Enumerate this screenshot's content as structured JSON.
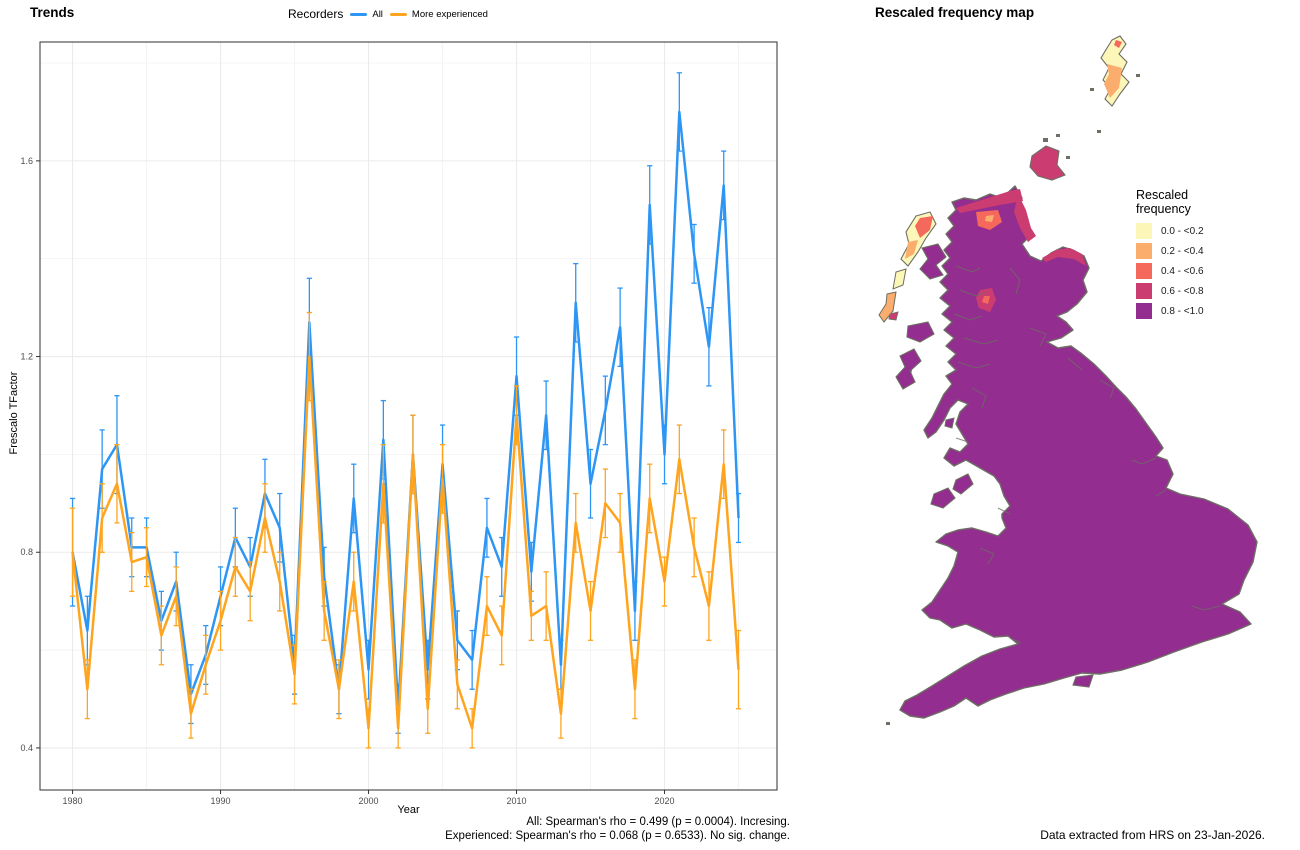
{
  "trends": {
    "title": "Trends",
    "legend_title": "Recorders",
    "xlabel": "Year",
    "ylabel": "Frescalo TFactor",
    "caption_line1": "All: Spearman's rho = 0.499 (p = 0.0004). Incresing.",
    "caption_line2": "Experienced: Spearman's rho = 0.068 (p = 0.6533). No sig. change."
  },
  "chart_data": {
    "type": "line",
    "title": "Trends",
    "xlabel": "Year",
    "ylabel": "Frescalo TFactor",
    "grid": true,
    "legend_position": "top",
    "xlim": [
      1977.8,
      2027.6
    ],
    "ylim": [
      0.314,
      1.843
    ],
    "x_ticks": [
      1980,
      1990,
      2000,
      2010,
      2020
    ],
    "x_minor": [
      1985,
      1995,
      2005,
      2015,
      2025
    ],
    "y_ticks": [
      "0.4",
      "0.8",
      "1.2",
      "1.6"
    ],
    "y_minor": [
      0.6,
      1.0,
      1.4,
      1.8
    ],
    "years": [
      1980,
      1981,
      1982,
      1983,
      1984,
      1985,
      1986,
      1987,
      1988,
      1989,
      1990,
      1991,
      1992,
      1993,
      1994,
      1995,
      1996,
      1997,
      1998,
      1999,
      2000,
      2001,
      2002,
      2003,
      2004,
      2005,
      2006,
      2007,
      2008,
      2009,
      2010,
      2011,
      2012,
      2013,
      2014,
      2015,
      2016,
      2017,
      2018,
      2019,
      2020,
      2021,
      2022,
      2023,
      2024,
      2025
    ],
    "series": [
      {
        "name": "All",
        "color": "#2D96F4",
        "values": [
          0.8,
          0.64,
          0.97,
          1.02,
          0.81,
          0.81,
          0.66,
          0.74,
          0.51,
          0.59,
          0.71,
          0.83,
          0.77,
          0.92,
          0.85,
          0.57,
          1.27,
          0.75,
          0.52,
          0.91,
          0.56,
          1.03,
          0.48,
          1.0,
          0.56,
          0.98,
          0.62,
          0.58,
          0.85,
          0.77,
          1.16,
          0.76,
          1.08,
          0.57,
          1.31,
          0.94,
          1.09,
          1.26,
          0.68,
          1.51,
          1.0,
          1.7,
          1.41,
          1.22,
          1.55,
          0.87
        ],
        "err": [
          0.11,
          0.07,
          0.08,
          0.1,
          0.06,
          0.06,
          0.06,
          0.06,
          0.06,
          0.06,
          0.06,
          0.06,
          0.06,
          0.07,
          0.07,
          0.06,
          0.09,
          0.06,
          0.05,
          0.07,
          0.06,
          0.08,
          0.05,
          0.08,
          0.06,
          0.08,
          0.06,
          0.06,
          0.06,
          0.06,
          0.08,
          0.06,
          0.07,
          0.05,
          0.08,
          0.07,
          0.07,
          0.08,
          0.06,
          0.08,
          0.06,
          0.08,
          0.06,
          0.08,
          0.07,
          0.05
        ]
      },
      {
        "name": "More experienced",
        "color": "#FFA41E",
        "values": [
          0.8,
          0.52,
          0.87,
          0.94,
          0.78,
          0.79,
          0.63,
          0.71,
          0.47,
          0.57,
          0.66,
          0.77,
          0.72,
          0.87,
          0.74,
          0.55,
          1.2,
          0.68,
          0.52,
          0.74,
          0.44,
          0.94,
          0.44,
          1.0,
          0.48,
          0.95,
          0.53,
          0.44,
          0.69,
          0.63,
          1.08,
          0.67,
          0.69,
          0.47,
          0.86,
          0.68,
          0.9,
          0.86,
          0.52,
          0.91,
          0.74,
          0.99,
          0.81,
          0.69,
          0.98,
          0.56
        ],
        "err": [
          0.09,
          0.06,
          0.07,
          0.08,
          0.06,
          0.06,
          0.06,
          0.06,
          0.05,
          0.06,
          0.06,
          0.06,
          0.06,
          0.07,
          0.06,
          0.06,
          0.09,
          0.06,
          0.06,
          0.06,
          0.04,
          0.08,
          0.04,
          0.08,
          0.05,
          0.07,
          0.05,
          0.04,
          0.06,
          0.06,
          0.06,
          0.05,
          0.07,
          0.05,
          0.06,
          0.06,
          0.07,
          0.06,
          0.06,
          0.07,
          0.05,
          0.07,
          0.06,
          0.07,
          0.07,
          0.08
        ]
      }
    ]
  },
  "map": {
    "title": "Rescaled frequency map",
    "legend_title": "Rescaled frequency",
    "legend_items": [
      {
        "label": "0.0 - <0.2",
        "color": "#FDF6B9"
      },
      {
        "label": "0.2 - <0.4",
        "color": "#FBAD6D"
      },
      {
        "label": "0.4 - <0.6",
        "color": "#F4695C"
      },
      {
        "label": "0.6 - <0.8",
        "color": "#CB3D71"
      },
      {
        "label": "0.8 - <1.0",
        "color": "#932D8F"
      }
    ],
    "caption": "Data extracted from HRS on 23-Jan-2026.",
    "palette": {
      "bin1": "#FDF6B9",
      "bin2": "#FBAD6D",
      "bin3": "#F4695C",
      "bin4": "#CB3D71",
      "bin5": "#932D8F"
    },
    "colors": {
      "coast": "#6E6E64",
      "grid_major": "#EBEBEB",
      "panel_border": "#2f2f2f",
      "tick_text": "#4D4D4D"
    }
  }
}
